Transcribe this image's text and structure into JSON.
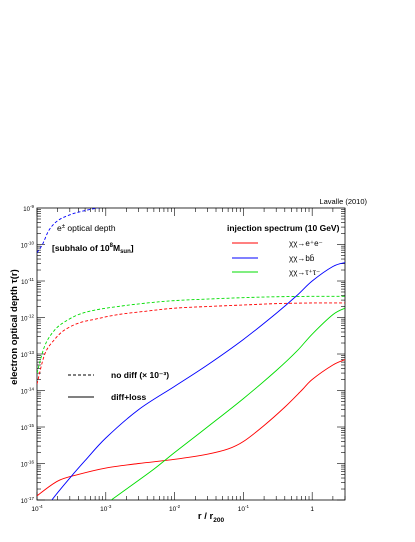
{
  "chart_data": {
    "type": "line",
    "credit": "Lavalle (2010)",
    "xlabel_main": "r / r",
    "xlabel_sub": "200",
    "ylabel": "electron optical depth τ(r)",
    "x_scale": "log",
    "y_scale": "log",
    "xlim": [
      0.0001,
      3
    ],
    "ylim": [
      1e-17,
      1e-09
    ],
    "x_ticks": [
      {
        "v": 0.0001,
        "m": "10",
        "e": "-4"
      },
      {
        "v": 0.001,
        "m": "10",
        "e": "-3"
      },
      {
        "v": 0.01,
        "m": "10",
        "e": "-2"
      },
      {
        "v": 0.1,
        "m": "10",
        "e": "-1"
      },
      {
        "v": 1,
        "m": "1",
        "e": ""
      }
    ],
    "y_ticks": [
      {
        "v": 1e-09,
        "m": "10",
        "e": "-9"
      },
      {
        "v": 1e-10,
        "m": "10",
        "e": "-10"
      },
      {
        "v": 1e-11,
        "m": "10",
        "e": "-11"
      },
      {
        "v": 1e-12,
        "m": "10",
        "e": "-12"
      },
      {
        "v": 1e-13,
        "m": "10",
        "e": "-13"
      },
      {
        "v": 1e-14,
        "m": "10",
        "e": "-14"
      },
      {
        "v": 1e-15,
        "m": "10",
        "e": "-15"
      },
      {
        "v": 1e-16,
        "m": "10",
        "e": "-16"
      },
      {
        "v": 1e-17,
        "m": "10",
        "e": "-17"
      }
    ],
    "annotations": {
      "title1": "e",
      "title1_sup": "±",
      "title1_rest": " optical depth",
      "title2_pre": "[subhalo of 10",
      "title2_sup": "8",
      "title2_mid": "M",
      "title2_sub": "sun",
      "title2_post": "]",
      "legend_title": "injection spectrum (10 GeV)"
    },
    "legend_channels": [
      {
        "name": "χχ→e⁺e⁻",
        "color": "#ff0000"
      },
      {
        "name": "χχ→bb̄",
        "color": "#0000ff"
      },
      {
        "name": "χχ→τ⁺τ⁻",
        "color": "#00dd00"
      }
    ],
    "legend_styles": [
      {
        "name": "no diff (× 10⁻³)",
        "style": "dashed"
      },
      {
        "name": "diff+loss",
        "style": "solid"
      }
    ],
    "series": [
      {
        "channel": "e",
        "style": "dashed",
        "color": "#ff0000",
        "x": [
          0.0001,
          0.00013,
          0.00018,
          0.00025,
          0.0004,
          0.0007,
          0.0015,
          0.004,
          0.01,
          0.03,
          0.1,
          0.3,
          1,
          3
        ],
        "y": [
          1.5e-14,
          1e-13,
          2.5e-13,
          4.5e-13,
          7e-13,
          9e-13,
          1.2e-12,
          1.5e-12,
          1.8e-12,
          2e-12,
          2.2e-12,
          2.4e-12,
          2.5e-12,
          2.5e-12
        ]
      },
      {
        "channel": "b",
        "style": "dashed",
        "color": "#0000ff",
        "x": [
          0.0001,
          0.00012,
          0.00015,
          0.0002,
          0.0003,
          0.0005,
          0.001,
          0.002,
          0.005,
          0.01,
          0.03,
          0.1,
          0.3,
          1,
          3
        ],
        "y": [
          6e-11,
          1e-10,
          2.5e-10,
          4.5e-10,
          6.5e-10,
          8.5e-10,
          1.1e-09,
          1.3e-09,
          1.5e-09,
          1.65e-09,
          1.8e-09,
          1.95e-09,
          2e-09,
          2e-09,
          2e-09
        ]
      },
      {
        "channel": "tau",
        "style": "dashed",
        "color": "#00dd00",
        "x": [
          0.0001,
          0.00013,
          0.00018,
          0.00025,
          0.0004,
          0.0007,
          0.0015,
          0.004,
          0.01,
          0.03,
          0.1,
          0.3,
          1,
          3
        ],
        "y": [
          3e-14,
          1.7e-13,
          4.5e-13,
          7.5e-13,
          1.2e-12,
          1.6e-12,
          2e-12,
          2.5e-12,
          2.9e-12,
          3.2e-12,
          3.5e-12,
          3.7e-12,
          3.8e-12,
          3.8e-12
        ]
      },
      {
        "channel": "e",
        "style": "solid",
        "color": "#ff0000",
        "x": [
          0.0001,
          0.0002,
          0.0004,
          0.001,
          0.003,
          0.01,
          0.03,
          0.06,
          0.1,
          0.2,
          0.4,
          0.7,
          1,
          2,
          3
        ],
        "y": [
          1.3e-17,
          3.3e-17,
          5e-17,
          7.5e-17,
          1e-16,
          1.3e-16,
          1.8e-16,
          2.5e-16,
          4e-16,
          1.1e-15,
          3.5e-15,
          1e-14,
          2e-14,
          5e-14,
          7e-14
        ]
      },
      {
        "channel": "b",
        "style": "solid",
        "color": "#0000ff",
        "x": [
          0.0001,
          0.00015,
          0.0002,
          0.0003,
          0.0005,
          0.001,
          0.003,
          0.01,
          0.03,
          0.1,
          0.3,
          0.6,
          1,
          2,
          3
        ],
        "y": [
          3e-18,
          8e-18,
          1.6e-17,
          4e-17,
          1.2e-16,
          5e-16,
          3e-15,
          1.3e-14,
          5e-14,
          2.5e-13,
          1.3e-12,
          4e-12,
          1e-11,
          2.5e-11,
          3.2e-11
        ]
      },
      {
        "channel": "tau",
        "style": "solid",
        "color": "#00dd00",
        "x": [
          0.0012,
          0.002,
          0.005,
          0.01,
          0.03,
          0.1,
          0.3,
          0.6,
          1,
          2,
          3
        ],
        "y": [
          1e-17,
          2e-17,
          7e-17,
          2e-16,
          1e-15,
          6e-15,
          3.5e-14,
          1.2e-13,
          3.5e-13,
          1.2e-12,
          1.8e-12
        ]
      }
    ]
  }
}
